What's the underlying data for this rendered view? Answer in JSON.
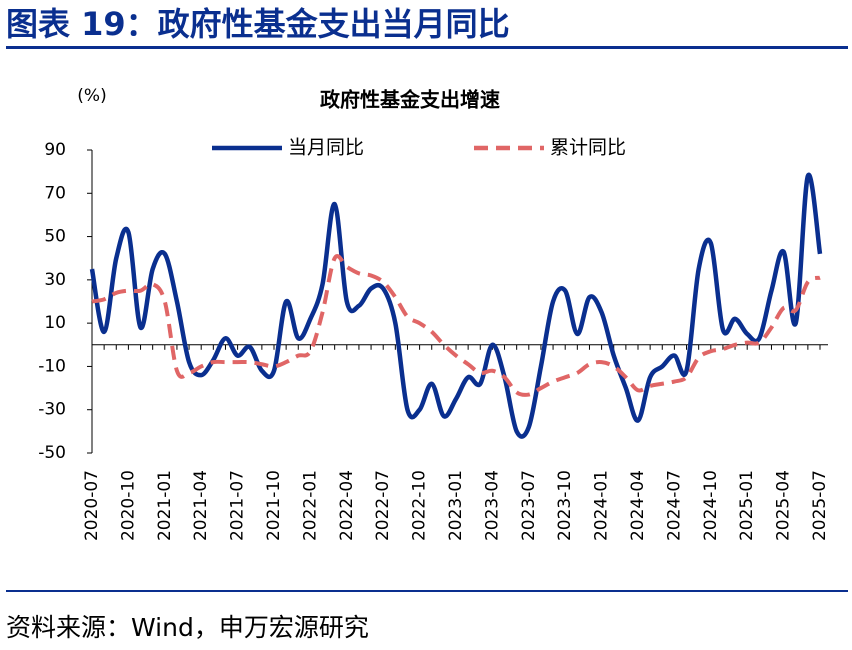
{
  "header": {
    "title": "图表 19：政府性基金支出当月同比"
  },
  "chart_data": {
    "type": "line",
    "title": "政府性基金支出增速",
    "y_unit": "(%)",
    "categories": [
      "2020-07",
      null,
      null,
      "2020-10",
      null,
      null,
      "2021-01",
      null,
      null,
      "2021-04",
      null,
      null,
      "2021-07",
      null,
      null,
      "2021-10",
      null,
      null,
      "2022-01",
      null,
      null,
      "2022-04",
      null,
      null,
      "2022-07",
      null,
      null,
      "2022-10",
      null,
      null,
      "2023-01",
      null,
      null,
      "2023-04",
      null,
      null,
      "2023-07",
      null,
      null,
      "2023-10",
      null,
      null,
      "2024-01",
      null,
      null,
      "2024-04",
      null,
      null,
      "2024-07",
      null,
      null,
      "2024-10",
      null,
      null,
      "2025-01",
      null,
      null,
      "2025-04",
      null,
      null,
      "2025-07"
    ],
    "series": [
      {
        "name": "当月同比",
        "color": "#0a2f8f",
        "dash": false,
        "values": [
          35,
          6,
          40,
          52,
          8,
          35,
          42,
          20,
          -8,
          -14,
          -7,
          3,
          -5,
          -1,
          -12,
          -12,
          20,
          3,
          12,
          28,
          65,
          20,
          18,
          26,
          26,
          10,
          -30,
          -30,
          -18,
          -33,
          -25,
          -15,
          -18,
          0,
          -15,
          -40,
          -38,
          -10,
          20,
          25,
          5,
          22,
          15,
          -5,
          -20,
          -35,
          -15,
          -10,
          -5,
          -12,
          35,
          47,
          7,
          12,
          5,
          3,
          25,
          43,
          10,
          78,
          42
        ]
      },
      {
        "name": "累计同比",
        "color": "#e06666",
        "dash": true,
        "values": [
          20,
          21,
          24,
          25,
          25,
          28,
          20,
          -12,
          -13,
          -10,
          -8,
          -8,
          -8,
          -8,
          -9,
          -10,
          -8,
          -5,
          -3,
          15,
          40,
          36,
          33,
          32,
          29,
          22,
          13,
          10,
          6,
          0,
          -5,
          -9,
          -13,
          -12,
          -15,
          -22,
          -23,
          -20,
          -17,
          -15,
          -13,
          -9,
          -8,
          -10,
          -15,
          -21,
          -19,
          -18,
          -17,
          -15,
          -6,
          -3,
          -2,
          0,
          1,
          1,
          8,
          17,
          16,
          29,
          31
        ]
      }
    ],
    "ylim": [
      -50,
      90
    ],
    "yticks": [
      -50,
      -30,
      -10,
      10,
      30,
      50,
      70,
      90
    ],
    "grid": false
  },
  "source": "资料来源：Wind，申万宏源研究"
}
